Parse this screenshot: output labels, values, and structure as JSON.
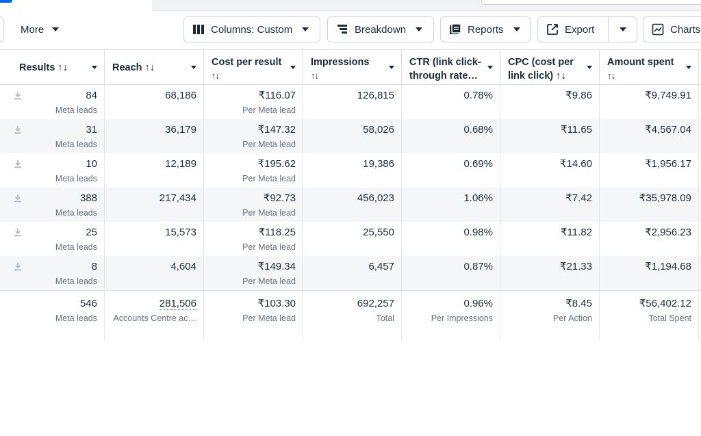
{
  "toolbar": {
    "more_label": "More",
    "columns_label": "Columns: Custom",
    "breakdown_label": "Breakdown",
    "reports_label": "Reports",
    "export_label": "Export",
    "charts_label": "Charts"
  },
  "columns": [
    {
      "key": "results",
      "label": "Results ↑↓"
    },
    {
      "key": "reach",
      "label": "Reach ↑↓"
    },
    {
      "key": "cost_per_result",
      "label": "Cost per result",
      "label2": "↑↓"
    },
    {
      "key": "impressions",
      "label": "Impressions",
      "label2": "↑↓"
    },
    {
      "key": "ctr",
      "label": "CTR (link click-",
      "label2": "through rate…"
    },
    {
      "key": "cpc",
      "label": "CPC (cost per",
      "label2": "link click) ↑↓"
    },
    {
      "key": "amount_spent",
      "label": "Amount spent",
      "label2": "↑↓"
    }
  ],
  "rows": [
    {
      "results": "84",
      "results_sub": "Meta leads",
      "reach": "68,186",
      "cost_per_result": "₹116.07",
      "cost_sub": "Per Meta lead",
      "impressions": "126,815",
      "ctr": "0.78%",
      "cpc": "₹9.86",
      "amount_spent": "₹9,749.91"
    },
    {
      "results": "31",
      "results_sub": "Meta leads",
      "reach": "36,179",
      "cost_per_result": "₹147.32",
      "cost_sub": "Per Meta lead",
      "impressions": "58,026",
      "ctr": "0.68%",
      "cpc": "₹11.65",
      "amount_spent": "₹4,567.04"
    },
    {
      "results": "10",
      "results_sub": "Meta leads",
      "reach": "12,189",
      "cost_per_result": "₹195.62",
      "cost_sub": "Per Meta lead",
      "impressions": "19,386",
      "ctr": "0.69%",
      "cpc": "₹14.60",
      "amount_spent": "₹1,956.17"
    },
    {
      "results": "388",
      "results_sub": "Meta leads",
      "reach": "217,434",
      "cost_per_result": "₹92.73",
      "cost_sub": "Per Meta lead",
      "impressions": "456,023",
      "ctr": "1.06%",
      "cpc": "₹7.42",
      "amount_spent": "₹35,978.09"
    },
    {
      "results": "25",
      "results_sub": "Meta leads",
      "reach": "15,573",
      "cost_per_result": "₹118.25",
      "cost_sub": "Per Meta lead",
      "impressions": "25,550",
      "ctr": "0.98%",
      "cpc": "₹11.82",
      "amount_spent": "₹2,956.23"
    },
    {
      "results": "8",
      "results_sub": "Meta leads",
      "reach": "4,604",
      "cost_per_result": "₹149.34",
      "cost_sub": "Per Meta lead",
      "impressions": "6,457",
      "ctr": "0.87%",
      "cpc": "₹21.33",
      "amount_spent": "₹1,194.68"
    }
  ],
  "totals": {
    "results": "546",
    "results_sub": "Meta leads",
    "reach": "281,506",
    "reach_sub": "Accounts Centre ac…",
    "cost_per_result": "₹103.30",
    "cost_sub": "Per Meta lead",
    "impressions": "692,257",
    "impressions_sub": "Total",
    "ctr": "0.96%",
    "ctr_sub": "Per Impressions",
    "cpc": "₹8.45",
    "cpc_sub": "Per Action",
    "amount_spent": "₹56,402.12",
    "amount_sub": "Total Spent"
  },
  "icons": {
    "columns": "columns-icon",
    "breakdown": "breakdown-icon",
    "reports": "reports-icon",
    "export": "export-icon",
    "charts": "charts-icon",
    "download": "download-icon"
  }
}
